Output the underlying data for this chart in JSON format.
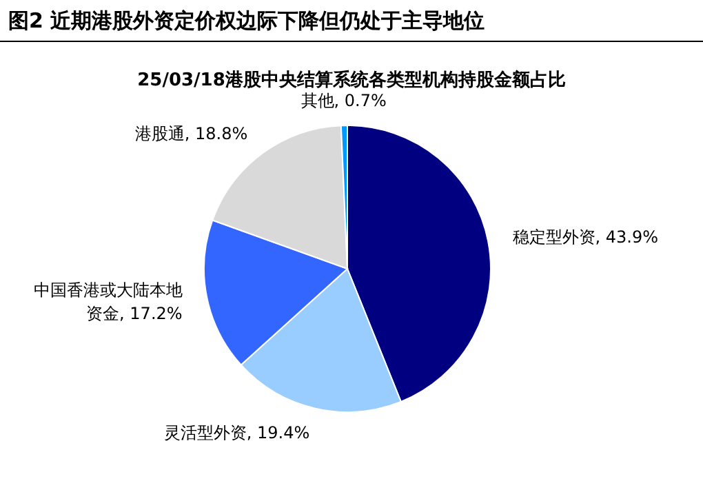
{
  "chart_data": {
    "type": "pie",
    "title": "图2  近期港股外资定价权边际下降但仍处于主导地位",
    "subtitle": "25/03/18港股中央结算系统各类型机构持股金额占比",
    "categories": [
      "稳定型外资",
      "灵活型外资",
      "中国香港或大陆本地资金",
      "港股通",
      "其他"
    ],
    "values": [
      43.9,
      19.4,
      17.2,
      18.8,
      0.7
    ],
    "colors": [
      "#000080",
      "#99ccff",
      "#3366ff",
      "#d9d9d9",
      "#0099ff"
    ],
    "value_labels": [
      ", 43.9%",
      ", 19.4%",
      ", 17.2%",
      ", 18.8%",
      ", 0.7%"
    ]
  }
}
